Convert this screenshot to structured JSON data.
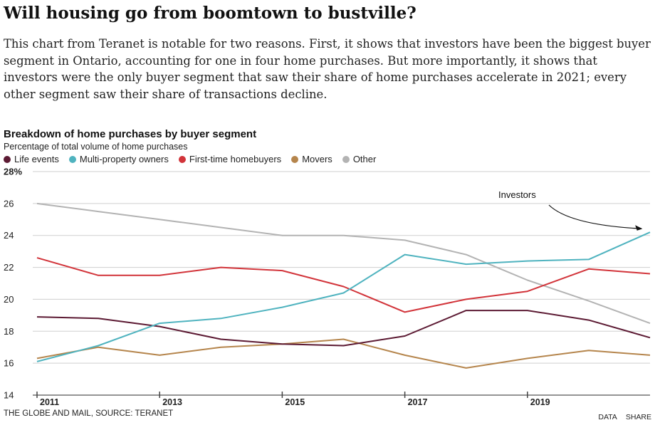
{
  "headline": "Will housing go from boomtown to bustville?",
  "intro": "This chart from Teranet is notable for two reasons. First, it shows that investors have been the biggest buyer segment in Ontario, accounting for one in four home purchases. But more importantly, it shows that investors were the only buyer segment that saw their share of home purchases accelerate in 2021; every other segment saw their share of transactions decline.",
  "source": "THE GLOBE AND MAIL, SOURCE: TERANET",
  "footer": {
    "data_label": "DATA",
    "share_label": "SHARE"
  },
  "chart_data": {
    "type": "line",
    "title": "Breakdown of home purchases by buyer segment",
    "subtitle": "Percentage of total volume of home purchases",
    "x": [
      2011,
      2012,
      2013,
      2014,
      2015,
      2016,
      2017,
      2018,
      2019,
      2020,
      2021
    ],
    "x_tick_labels": [
      "2011",
      "2013",
      "2015",
      "2017",
      "2019"
    ],
    "x_tick_values": [
      2011,
      2013,
      2015,
      2017,
      2019
    ],
    "ylim": [
      14,
      28
    ],
    "y_ticks": [
      14,
      16,
      18,
      20,
      22,
      24,
      26,
      28
    ],
    "y_tick_labels": [
      "14",
      "16",
      "18",
      "20",
      "22",
      "24",
      "26",
      "28%"
    ],
    "series": [
      {
        "name": "Life events",
        "color": "#5c1a33",
        "values": [
          18.9,
          18.8,
          18.3,
          17.5,
          17.2,
          17.1,
          17.7,
          19.3,
          19.3,
          18.7,
          17.6
        ]
      },
      {
        "name": "Multi-property owners",
        "color": "#4fb3bf",
        "values": [
          16.1,
          17.1,
          18.5,
          18.8,
          19.5,
          20.4,
          22.8,
          22.2,
          22.4,
          22.5,
          24.2
        ]
      },
      {
        "name": "First-time homebuyers",
        "color": "#d2343a",
        "values": [
          22.6,
          21.5,
          21.5,
          22.0,
          21.8,
          20.8,
          19.2,
          20.0,
          20.5,
          21.9,
          21.6
        ]
      },
      {
        "name": "Movers",
        "color": "#b5854c",
        "values": [
          16.3,
          17.0,
          16.5,
          17.0,
          17.2,
          17.5,
          16.5,
          15.7,
          16.3,
          16.8,
          16.5
        ]
      },
      {
        "name": "Other",
        "color": "#b3b3b3",
        "values": [
          26.0,
          25.5,
          25.0,
          24.5,
          24.0,
          24.0,
          23.7,
          22.8,
          21.2,
          19.9,
          18.5
        ]
      }
    ],
    "annotation": {
      "text": "Investors",
      "x": 2021,
      "y": 24.2
    },
    "grid": true
  }
}
